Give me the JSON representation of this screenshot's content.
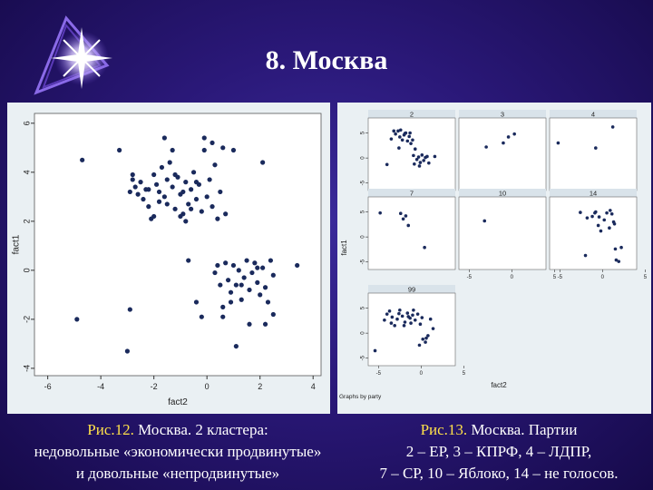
{
  "slide": {
    "title": "8. Москва",
    "caption_left": {
      "number": "Рис.12.",
      "line1_rest": " Москва. 2 кластера:",
      "line2": "недовольные «экономически продвинутые»",
      "line3": "и довольные «непродвинутые»"
    },
    "caption_right": {
      "number": "Рис.13.",
      "line1_rest": " Москва. Партии",
      "line2": "2 – ЕР, 3 – КПРФ, 4 – ЛДПР,",
      "line3": "7 – СР, 10 – Яблоко, 14 – не голосов."
    }
  },
  "chart_data": [
    {
      "type": "scatter",
      "title": "",
      "xlabel": "fact2",
      "ylabel": "fact1",
      "xlim": [
        -6.5,
        4.3
      ],
      "ylim": [
        -4.3,
        6.4
      ],
      "xticks": [
        -6,
        -4,
        -2,
        0,
        2,
        4
      ],
      "yticks": [
        -4,
        -2,
        0,
        2,
        4,
        6
      ],
      "grid": false,
      "point_color": "#1a2a5c",
      "points": [
        [
          -4.7,
          4.5
        ],
        [
          -3.3,
          4.9
        ],
        [
          -2.8,
          3.7
        ],
        [
          -2.7,
          3.4
        ],
        [
          -2.8,
          3.9
        ],
        [
          -2.6,
          3.1
        ],
        [
          -2.9,
          3.2
        ],
        [
          -2.5,
          3.6
        ],
        [
          -2.4,
          2.9
        ],
        [
          -2.2,
          2.6
        ],
        [
          -2.3,
          3.3
        ],
        [
          -2.0,
          3.9
        ],
        [
          -2.1,
          2.1
        ],
        [
          -1.9,
          3.5
        ],
        [
          -1.8,
          2.8
        ],
        [
          -1.7,
          4.2
        ],
        [
          -1.6,
          3.0
        ],
        [
          -1.5,
          3.7
        ],
        [
          -1.4,
          4.4
        ],
        [
          -1.3,
          3.4
        ],
        [
          -1.2,
          2.5
        ],
        [
          -1.1,
          3.8
        ],
        [
          -1.0,
          3.1
        ],
        [
          -0.9,
          2.3
        ],
        [
          -0.8,
          3.6
        ],
        [
          -0.7,
          2.7
        ],
        [
          -0.6,
          3.3
        ],
        [
          -0.5,
          4.0
        ],
        [
          -0.4,
          2.9
        ],
        [
          -0.3,
          3.5
        ],
        [
          -0.2,
          2.4
        ],
        [
          -0.1,
          4.9
        ],
        [
          0.0,
          3.0
        ],
        [
          0.1,
          3.7
        ],
        [
          0.2,
          2.6
        ],
        [
          0.3,
          4.3
        ],
        [
          0.4,
          2.1
        ],
        [
          0.5,
          3.2
        ],
        [
          0.6,
          5.0
        ],
        [
          0.7,
          2.3
        ],
        [
          -1.6,
          5.4
        ],
        [
          -1.3,
          4.9
        ],
        [
          -0.1,
          5.4
        ],
        [
          0.2,
          5.2
        ],
        [
          1.0,
          4.9
        ],
        [
          2.1,
          4.4
        ],
        [
          -2.0,
          2.2
        ],
        [
          -0.8,
          2.0
        ],
        [
          -1.0,
          2.2
        ],
        [
          -0.6,
          2.5
        ],
        [
          -1.8,
          3.2
        ],
        [
          -1.2,
          3.9
        ],
        [
          -0.9,
          3.2
        ],
        [
          -0.4,
          3.6
        ],
        [
          -2.2,
          3.3
        ],
        [
          -1.5,
          2.7
        ],
        [
          -4.9,
          -2.0
        ],
        [
          -2.9,
          -1.6
        ],
        [
          -3.0,
          -3.3
        ],
        [
          -0.7,
          0.4
        ],
        [
          -0.4,
          -1.3
        ],
        [
          -0.2,
          -1.9
        ],
        [
          0.3,
          -0.1
        ],
        [
          0.4,
          0.2
        ],
        [
          0.5,
          -0.6
        ],
        [
          0.6,
          -1.5
        ],
        [
          0.7,
          0.3
        ],
        [
          0.8,
          -0.4
        ],
        [
          0.9,
          -0.9
        ],
        [
          1.0,
          0.2
        ],
        [
          1.1,
          -0.6
        ],
        [
          1.2,
          0.0
        ],
        [
          1.3,
          -1.2
        ],
        [
          1.4,
          -0.3
        ],
        [
          1.5,
          0.4
        ],
        [
          1.6,
          -0.8
        ],
        [
          1.7,
          -0.1
        ],
        [
          1.8,
          0.3
        ],
        [
          1.9,
          -0.5
        ],
        [
          2.0,
          -1.0
        ],
        [
          2.1,
          0.1
        ],
        [
          2.2,
          -0.7
        ],
        [
          2.3,
          -1.3
        ],
        [
          2.4,
          0.4
        ],
        [
          2.5,
          -0.2
        ],
        [
          1.1,
          -3.1
        ],
        [
          1.6,
          -2.2
        ],
        [
          2.2,
          -2.2
        ],
        [
          2.5,
          -1.8
        ],
        [
          3.4,
          0.2
        ],
        [
          0.9,
          -1.3
        ],
        [
          1.3,
          -0.6
        ],
        [
          1.9,
          0.1
        ],
        [
          0.6,
          -1.9
        ]
      ]
    },
    {
      "type": "scatter",
      "title": "",
      "xlabel": "fact2",
      "ylabel": "fact1",
      "footer": "Graphs by party",
      "xlim": [
        -6.2,
        4.0
      ],
      "ylim": [
        -6.5,
        8.0
      ],
      "xticks": [
        -5,
        0,
        5
      ],
      "yticks": [
        -5,
        0,
        5
      ],
      "point_color": "#1a2a5c",
      "panels": [
        {
          "label": "2",
          "points": [
            [
              -3.5,
              3.8
            ],
            [
              -3.0,
              4.8
            ],
            [
              -2.7,
              5.4
            ],
            [
              -2.5,
              4.2
            ],
            [
              -2.2,
              3.6
            ],
            [
              -2.0,
              4.6
            ],
            [
              -1.8,
              5.0
            ],
            [
              -1.6,
              3.4
            ],
            [
              -1.4,
              4.3
            ],
            [
              -1.2,
              2.9
            ],
            [
              -1.0,
              3.6
            ],
            [
              -0.9,
              0.5
            ],
            [
              -0.7,
              1.8
            ],
            [
              -0.5,
              -0.3
            ],
            [
              -0.3,
              0.2
            ],
            [
              -0.1,
              -0.9
            ],
            [
              0.1,
              0.6
            ],
            [
              0.3,
              -0.5
            ],
            [
              0.5,
              0.1
            ],
            [
              0.7,
              0.3
            ],
            [
              -2.4,
              5.6
            ],
            [
              -1.9,
              4.9
            ],
            [
              -3.2,
              5.4
            ],
            [
              -0.8,
              -1.2
            ],
            [
              1.6,
              0.3
            ],
            [
              -4.0,
              -1.3
            ],
            [
              -2.6,
              2.0
            ],
            [
              -1.3,
              5.0
            ],
            [
              -0.2,
              -1.6
            ],
            [
              0.9,
              -1.0
            ]
          ]
        },
        {
          "label": "3",
          "points": [
            [
              -3.0,
              2.2
            ],
            [
              -1.0,
              3.0
            ],
            [
              -0.4,
              4.2
            ],
            [
              0.3,
              4.8
            ]
          ]
        },
        {
          "label": "4",
          "points": [
            [
              -5.2,
              3.0
            ],
            [
              -0.8,
              2.0
            ],
            [
              1.2,
              6.2
            ]
          ]
        },
        {
          "label": "7",
          "points": [
            [
              -4.8,
              4.8
            ],
            [
              -2.4,
              4.7
            ],
            [
              -2.1,
              3.6
            ],
            [
              -1.8,
              4.2
            ],
            [
              -1.5,
              2.3
            ],
            [
              0.4,
              -2.1
            ]
          ]
        },
        {
          "label": "10",
          "points": [
            [
              -3.2,
              3.2
            ]
          ]
        },
        {
          "label": "14",
          "points": [
            [
              -2.6,
              4.9
            ],
            [
              -1.8,
              3.8
            ],
            [
              -1.2,
              4.1
            ],
            [
              -0.9,
              4.8
            ],
            [
              -0.5,
              2.3
            ],
            [
              -0.2,
              1.2
            ],
            [
              0.2,
              3.4
            ],
            [
              0.5,
              4.8
            ],
            [
              0.8,
              1.8
            ],
            [
              1.1,
              4.6
            ],
            [
              1.5,
              -2.4
            ],
            [
              2.2,
              -2.1
            ],
            [
              -2.0,
              -3.7
            ],
            [
              1.3,
              3.0
            ],
            [
              1.6,
              -4.6
            ],
            [
              -0.8,
              5.0
            ],
            [
              -0.4,
              4.0
            ],
            [
              1.9,
              -4.9
            ],
            [
              1.4,
              2.6
            ],
            [
              0.9,
              5.3
            ]
          ]
        },
        {
          "label": "99",
          "points": [
            [
              -5.4,
              -3.5
            ],
            [
              -4.3,
              2.6
            ],
            [
              -4.0,
              3.8
            ],
            [
              -3.7,
              4.4
            ],
            [
              -3.4,
              3.2
            ],
            [
              -3.1,
              1.5
            ],
            [
              -2.8,
              2.8
            ],
            [
              -2.5,
              4.6
            ],
            [
              -2.2,
              3.4
            ],
            [
              -1.9,
              2.2
            ],
            [
              -1.6,
              4.0
            ],
            [
              -1.3,
              3.0
            ],
            [
              -1.0,
              3.6
            ],
            [
              -0.7,
              2.6
            ],
            [
              -0.4,
              3.8
            ],
            [
              -0.1,
              1.8
            ],
            [
              0.2,
              -1.2
            ],
            [
              0.5,
              -1.8
            ],
            [
              0.8,
              -0.5
            ],
            [
              1.1,
              2.8
            ],
            [
              -2.0,
              1.5
            ],
            [
              -1.2,
              2.0
            ],
            [
              -0.2,
              -2.4
            ],
            [
              0.6,
              -1.0
            ],
            [
              -3.5,
              2.0
            ],
            [
              -2.6,
              3.9
            ],
            [
              -1.5,
              3.3
            ],
            [
              -0.9,
              4.6
            ],
            [
              0.1,
              3.1
            ],
            [
              1.4,
              0.9
            ]
          ]
        }
      ]
    }
  ]
}
